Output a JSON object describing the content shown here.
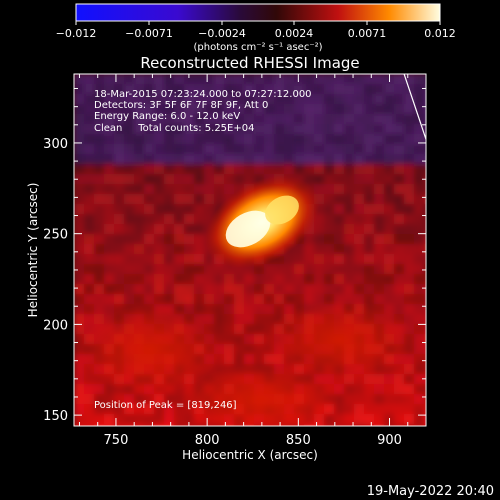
{
  "colorbar": {
    "ticks": [
      "−0.012",
      "−0.0071",
      "−0.0024",
      "0.0024",
      "0.0071",
      "0.012"
    ],
    "unit_label": "(photons cm⁻² s⁻¹ asec⁻²)",
    "range": [
      -0.012,
      0.012
    ]
  },
  "title": "Reconstructed RHESSI Image",
  "info": {
    "line1": "18-Mar-2015 07:23:24.000 to 07:27:12.000",
    "line2": "Detectors: 3F 5F 6F 7F 8F 9F, Att 0",
    "line3": "Energy Range: 6.0 - 12.0 keV",
    "line4": "Clean     Total counts: 5.25E+04"
  },
  "peak_label": "Position of Peak = [819,246]",
  "footer_date": "19-May-2022 20:40",
  "chart_data": {
    "type": "heatmap",
    "title": "Reconstructed RHESSI Image",
    "xlabel": "Heliocentric X (arcsec)",
    "ylabel": "Heliocentric Y (arcsec)",
    "xlim": [
      727,
      920
    ],
    "ylim": [
      144,
      338
    ],
    "x_ticks": [
      750,
      800,
      850,
      900
    ],
    "y_ticks": [
      150,
      200,
      250,
      300
    ],
    "peak": {
      "x": 819,
      "y": 246
    },
    "colormap": "red-temperature",
    "limb_curve": [
      [
        908,
        338
      ],
      [
        912,
        326
      ],
      [
        916,
        314
      ],
      [
        920,
        302
      ]
    ]
  }
}
